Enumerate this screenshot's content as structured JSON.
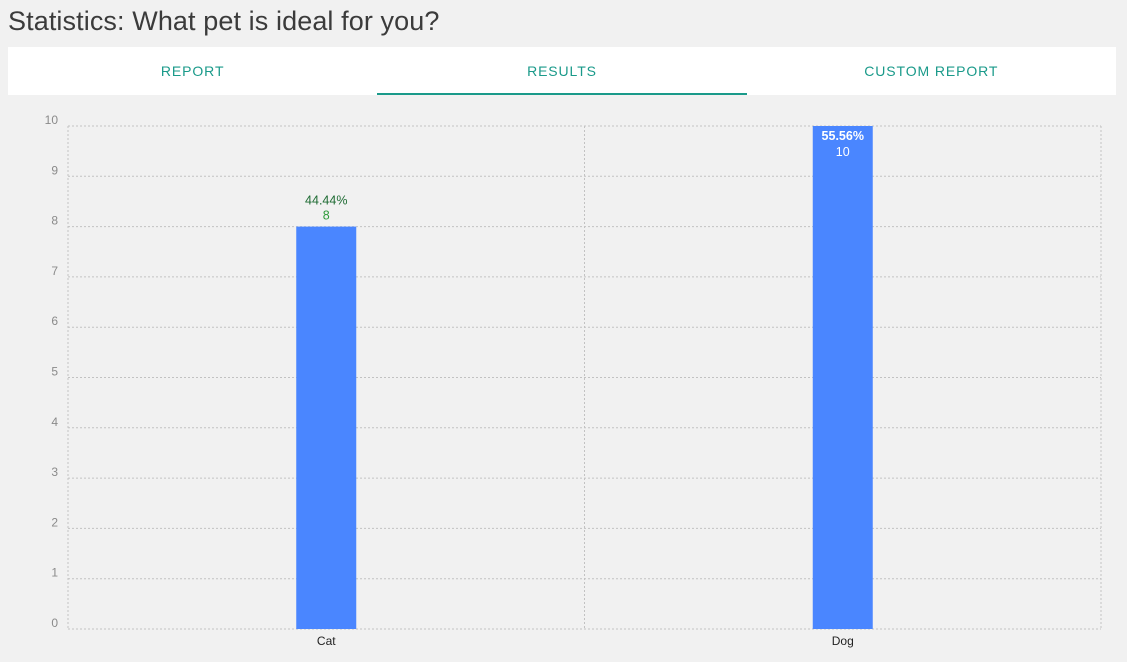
{
  "page": {
    "title": "Statistics: What pet is ideal for you?"
  },
  "tabs": [
    {
      "label": "REPORT",
      "active": false
    },
    {
      "label": "RESULTS",
      "active": true
    },
    {
      "label": "CUSTOM REPORT",
      "active": false
    }
  ],
  "colors": {
    "accent": "#1a9a8a",
    "bar": "#4a86ff",
    "label_outside_percent": "#1e6b33",
    "label_outside_count": "#2e9a3a",
    "label_inside": "#ffffff",
    "grid": "#c2c2c2"
  },
  "chart_data": {
    "type": "bar",
    "categories": [
      "Cat",
      "Dog"
    ],
    "values": [
      8,
      10
    ],
    "data_labels": [
      {
        "percent": "44.44%",
        "count": "8"
      },
      {
        "percent": "55.56%",
        "count": "10"
      }
    ],
    "ylim": [
      0,
      10
    ],
    "yticks": [
      "0",
      "1",
      "2",
      "3",
      "4",
      "5",
      "6",
      "7",
      "8",
      "9",
      "10"
    ],
    "grid": true,
    "title": "",
    "xlabel": "",
    "ylabel": ""
  }
}
